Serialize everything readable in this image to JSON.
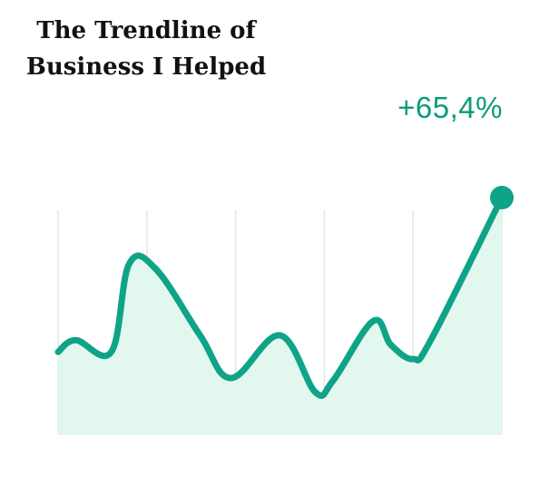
{
  "title": "The Trendline of\nBusiness I Helped",
  "change_label": "+65,4%",
  "colors": {
    "line": "#0fa387",
    "fill": "#e2f8ef",
    "grid": "#e3e6ea"
  },
  "chart_data": {
    "type": "area",
    "title": "The Trendline of Business I Helped",
    "xlabel": "",
    "ylabel": "",
    "grid": "vertical",
    "ylim": [
      0,
      100
    ],
    "x": [
      0,
      0.2,
      0.6,
      0.8,
      1.1,
      1.6,
      1.95,
      2.5,
      2.9,
      3.1,
      3.55,
      3.75,
      4.0,
      4.2,
      5.0
    ],
    "y": [
      35,
      40,
      35,
      72,
      70,
      42,
      24,
      42,
      18,
      23,
      48,
      38,
      32,
      40,
      100
    ],
    "xlim": [
      0,
      5
    ],
    "end_marker": true
  }
}
